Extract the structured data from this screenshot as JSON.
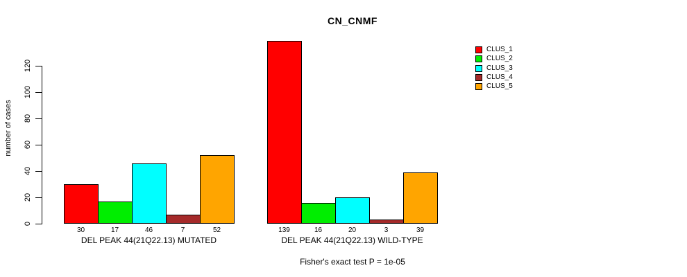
{
  "title": "CN_CNMF",
  "ylabel": "number of cases",
  "footnote": "Fisher's exact test P = 1e-05",
  "chart_data": {
    "type": "bar",
    "title": "CN_CNMF",
    "xlabel": "",
    "ylabel": "number of cases",
    "yticks": [
      0,
      20,
      40,
      60,
      80,
      100,
      120
    ],
    "ylim": [
      0,
      139
    ],
    "grid": false,
    "legend_position": "right",
    "bar_value_labels": true,
    "categories": [
      "DEL PEAK 44(21Q22.13) MUTATED",
      "DEL PEAK 44(21Q22.13) WILD-TYPE"
    ],
    "series": [
      {
        "name": "CLUS_1",
        "color": "#FF0000",
        "values": [
          30,
          139
        ]
      },
      {
        "name": "CLUS_2",
        "color": "#00EE00",
        "values": [
          17,
          16
        ]
      },
      {
        "name": "CLUS_3",
        "color": "#00FFFF",
        "values": [
          46,
          20
        ]
      },
      {
        "name": "CLUS_4",
        "color": "#A52A2A",
        "values": [
          7,
          3
        ]
      },
      {
        "name": "CLUS_5",
        "color": "#FFA500",
        "values": [
          52,
          39
        ]
      }
    ],
    "annotation": "Fisher's exact test P = 1e-05"
  },
  "legend": {
    "items": [
      {
        "label": "CLUS_1",
        "color": "#FF0000"
      },
      {
        "label": "CLUS_2",
        "color": "#00EE00"
      },
      {
        "label": "CLUS_3",
        "color": "#00FFFF"
      },
      {
        "label": "CLUS_4",
        "color": "#A52A2A"
      },
      {
        "label": "CLUS_5",
        "color": "#FFA500"
      }
    ]
  }
}
